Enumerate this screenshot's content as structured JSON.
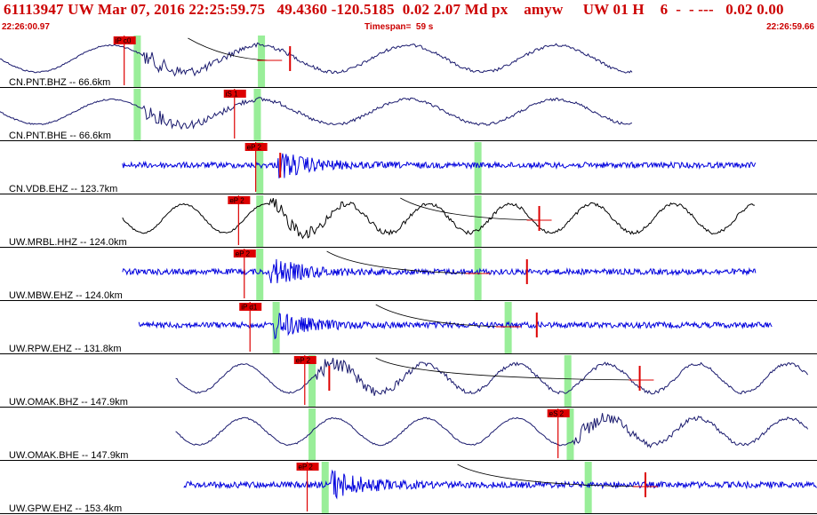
{
  "header": {
    "title": "61113947 UW Mar 07, 2016 22:25:59.75   49.4360 -120.5185  0.02 2.07 Md px    amyw     UW 01 H    6  -  - ---   0.02 0.00",
    "start_time": "22:26:00.97",
    "timespan_label": "Timespan=  59 s",
    "end_time": "22:26:59.66"
  },
  "colors": {
    "header_text": "#cc0000",
    "trace_navy": "#1a1a6e",
    "trace_blue": "#0000dd",
    "trace_black": "#000000",
    "pick_marker": "#dd0000",
    "pick_window": "#99ee99",
    "separator": "#000000"
  },
  "channels": [
    {
      "label": "CN.PNT.BHZ -- 66.6km",
      "color": "navy",
      "style": "long-period",
      "start": 0.0,
      "end": 0.775,
      "arrival": 0.175,
      "amp": 0.7,
      "freq": 5.5,
      "greens": [
        0.168,
        0.32
      ],
      "picks": [
        {
          "label": "iP c0",
          "pos": 0.152
        }
      ],
      "coda": [
        0.23,
        0.33
      ],
      "red_ticks": [
        0.355
      ]
    },
    {
      "label": "CN.PNT.BHE -- 66.6km",
      "color": "navy",
      "style": "long-period",
      "start": 0.0,
      "end": 0.775,
      "arrival": 0.175,
      "amp": 0.65,
      "freq": 5.5,
      "greens": [
        0.168,
        0.315
      ],
      "picks": [
        {
          "label": "iS 1",
          "pos": 0.287
        }
      ],
      "coda": null,
      "red_ticks": []
    },
    {
      "label": "CN.VDB.EHZ -- 123.7km",
      "color": "blue",
      "style": "short-period",
      "start": 0.15,
      "end": 0.925,
      "arrival": 0.34,
      "amp": 0.75,
      "freq": 0,
      "greens": [
        0.318,
        0.585
      ],
      "picks": [
        {
          "label": "eP 2",
          "pos": 0.313
        }
      ],
      "coda": null,
      "red_ticks": [
        0.343
      ]
    },
    {
      "label": "UW.MRBL.HHZ -- 124.0km",
      "color": "black",
      "style": "long-period",
      "start": 0.15,
      "end": 0.925,
      "arrival": 0.33,
      "amp": 0.75,
      "freq": 10,
      "greens": [
        0.318,
        0.585
      ],
      "picks": [
        {
          "label": "eP 2",
          "pos": 0.292
        }
      ],
      "coda": [
        0.49,
        0.66
      ],
      "red_ticks": [
        0.66
      ]
    },
    {
      "label": "UW.MBW.EHZ -- 124.0km",
      "color": "blue",
      "style": "short-period",
      "start": 0.15,
      "end": 0.925,
      "arrival": 0.33,
      "amp": 0.75,
      "freq": 0,
      "greens": [
        0.318,
        0.585
      ],
      "picks": [
        {
          "label": "eP 2",
          "pos": 0.299
        }
      ],
      "coda": [
        0.4,
        0.585
      ],
      "red_ticks": [
        0.645
      ]
    },
    {
      "label": "UW.RPW.EHZ -- 131.8km",
      "color": "blue",
      "style": "short-period",
      "start": 0.17,
      "end": 0.945,
      "arrival": 0.335,
      "amp": 0.75,
      "freq": 0,
      "greens": [
        0.338,
        0.622
      ],
      "picks": [
        {
          "label": "iP d1",
          "pos": 0.306
        }
      ],
      "coda": [
        0.46,
        0.622
      ],
      "red_ticks": [
        0.657
      ]
    },
    {
      "label": "UW.OMAK.BHZ -- 147.9km",
      "color": "navy",
      "style": "long-period",
      "start": 0.215,
      "end": 0.99,
      "arrival": 0.385,
      "amp": 0.75,
      "freq": 9,
      "greens": [
        0.382,
        0.695
      ],
      "picks": [
        {
          "label": "eP 2",
          "pos": 0.373
        }
      ],
      "coda": [
        0.46,
        0.785
      ],
      "red_ticks": [
        0.403,
        0.783
      ]
    },
    {
      "label": "UW.OMAK.BHE -- 147.9km",
      "color": "navy",
      "style": "long-period",
      "start": 0.215,
      "end": 0.99,
      "arrival": 0.7,
      "amp": 0.7,
      "freq": 9,
      "greens": [
        0.382,
        0.698
      ],
      "picks": [
        {
          "label": "eS 2",
          "pos": 0.683
        }
      ],
      "coda": null,
      "red_ticks": []
    },
    {
      "label": "UW.GPW.EHZ -- 153.4km",
      "color": "blue",
      "style": "short-period",
      "start": 0.225,
      "end": 1.0,
      "arrival": 0.405,
      "amp": 0.8,
      "freq": 0,
      "greens": [
        0.398,
        0.72
      ],
      "picks": [
        {
          "label": "eP 2",
          "pos": 0.376
        }
      ],
      "coda": [
        0.56,
        0.79
      ],
      "red_ticks": [
        0.79
      ]
    }
  ]
}
